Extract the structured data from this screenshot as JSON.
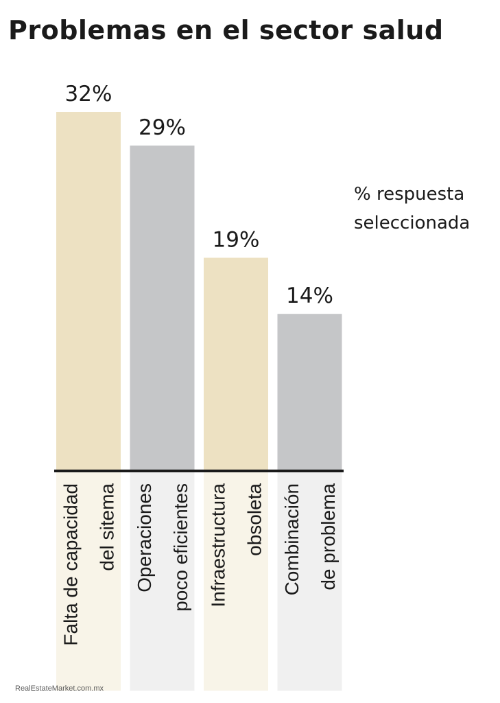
{
  "chart_data": {
    "type": "bar",
    "title": "Problemas en el sector salud",
    "note": [
      "% respuesta",
      "seleccionada"
    ],
    "categories": [
      [
        "Falta de capacidad",
        "del sitema"
      ],
      [
        "Operaciones",
        "poco eficientes"
      ],
      [
        "Infraestructura",
        "obsoleta"
      ],
      [
        "Combinación",
        "de problema"
      ]
    ],
    "values": [
      32,
      29,
      19,
      14
    ],
    "value_labels": [
      "32%",
      "29%",
      "19%",
      "14%"
    ],
    "unit": "%",
    "ylim": [
      0,
      32
    ],
    "colors": {
      "bars": [
        "#ede1c2",
        "#c5c6c8",
        "#ede1c2",
        "#c5c6c8"
      ],
      "label_panels": [
        "#f8f4e8",
        "#f0f0f0",
        "#f8f4e8",
        "#f0f0f0"
      ],
      "baseline": "#1a1a1a",
      "text": "#1a1a1a"
    },
    "grid": false,
    "legend": "none"
  },
  "watermark": "RealEstateMarket.com.mx"
}
